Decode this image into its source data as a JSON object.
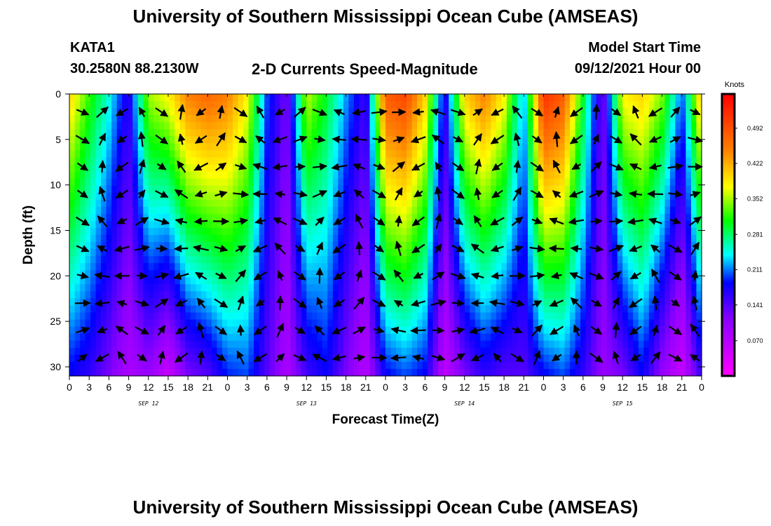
{
  "title_top": "University of Southern Mississippi Ocean Cube (AMSEAS)",
  "title_bottom": "University of Southern Mississippi Ocean Cube (AMSEAS)",
  "station": {
    "name": "KATA1",
    "coords": "30.2580N  88.2130W"
  },
  "model": {
    "label": "Model Start Time",
    "start": "09/12/2021 Hour 00"
  },
  "chart_data": {
    "type": "heatmap",
    "title": "2-D Currents Speed-Magnitude",
    "xlabel": "Forecast Time(Z)",
    "ylabel": "Depth (ft)",
    "xlim": [
      0,
      96
    ],
    "ylim": [
      0,
      31
    ],
    "x_tick_values": [
      0,
      3,
      6,
      9,
      12,
      15,
      18,
      21,
      24,
      27,
      30,
      33,
      36,
      39,
      42,
      45,
      48,
      51,
      54,
      57,
      60,
      63,
      66,
      69,
      72,
      75,
      78,
      81,
      84,
      87,
      90,
      93,
      96
    ],
    "x_tick_labels": [
      "0",
      "3",
      "6",
      "9",
      "12",
      "15",
      "18",
      "21",
      "0",
      "3",
      "6",
      "9",
      "12",
      "15",
      "18",
      "21",
      "0",
      "3",
      "6",
      "9",
      "12",
      "15",
      "18",
      "21",
      "0",
      "3",
      "6",
      "9",
      "12",
      "15",
      "18",
      "21",
      "0"
    ],
    "date_labels": [
      {
        "text": "SEP 12",
        "x": 12
      },
      {
        "text": "SEP 13",
        "x": 36
      },
      {
        "text": "SEP 14",
        "x": 60
      },
      {
        "text": "SEP 15",
        "x": 84
      }
    ],
    "y_ticks": [
      0,
      5,
      10,
      15,
      20,
      25,
      30
    ],
    "colorbar": {
      "units": "Knots",
      "min": 0.0,
      "max": 0.56,
      "ticks": [
        "0.492",
        "0.422",
        "0.352",
        "0.281",
        "0.211",
        "0.141",
        "0.070"
      ],
      "tick_values": [
        0.492,
        0.422,
        0.352,
        0.281,
        0.211,
        0.141,
        0.07
      ]
    },
    "speed_columns": [
      {
        "t": 0,
        "top": 0.4,
        "bottom": 0.18
      },
      {
        "t": 3,
        "top": 0.32,
        "bottom": 0.16
      },
      {
        "t": 6,
        "top": 0.25,
        "bottom": 0.12
      },
      {
        "t": 9,
        "top": 0.16,
        "bottom": 0.08
      },
      {
        "t": 12,
        "top": 0.35,
        "bottom": 0.1
      },
      {
        "t": 15,
        "top": 0.38,
        "bottom": 0.05
      },
      {
        "t": 18,
        "top": 0.45,
        "bottom": 0.12
      },
      {
        "t": 21,
        "top": 0.47,
        "bottom": 0.14
      },
      {
        "t": 24,
        "top": 0.45,
        "bottom": 0.19
      },
      {
        "t": 27,
        "top": 0.38,
        "bottom": 0.2
      },
      {
        "t": 30,
        "top": 0.2,
        "bottom": 0.14
      },
      {
        "t": 33,
        "top": 0.12,
        "bottom": 0.08
      },
      {
        "t": 36,
        "top": 0.36,
        "bottom": 0.15
      },
      {
        "t": 39,
        "top": 0.3,
        "bottom": 0.18
      },
      {
        "t": 42,
        "top": 0.22,
        "bottom": 0.12
      },
      {
        "t": 45,
        "top": 0.15,
        "bottom": 0.07
      },
      {
        "t": 48,
        "top": 0.48,
        "bottom": 0.18
      },
      {
        "t": 51,
        "top": 0.5,
        "bottom": 0.2
      },
      {
        "t": 54,
        "top": 0.4,
        "bottom": 0.18
      },
      {
        "t": 57,
        "top": 0.16,
        "bottom": 0.06
      },
      {
        "t": 60,
        "top": 0.4,
        "bottom": 0.12
      },
      {
        "t": 63,
        "top": 0.45,
        "bottom": 0.16
      },
      {
        "t": 66,
        "top": 0.38,
        "bottom": 0.14
      },
      {
        "t": 69,
        "top": 0.22,
        "bottom": 0.14
      },
      {
        "t": 72,
        "top": 0.52,
        "bottom": 0.18
      },
      {
        "t": 75,
        "top": 0.48,
        "bottom": 0.2
      },
      {
        "t": 78,
        "top": 0.3,
        "bottom": 0.16
      },
      {
        "t": 81,
        "top": 0.12,
        "bottom": 0.1
      },
      {
        "t": 84,
        "top": 0.38,
        "bottom": 0.12
      },
      {
        "t": 87,
        "top": 0.4,
        "bottom": 0.18
      },
      {
        "t": 90,
        "top": 0.34,
        "bottom": 0.1
      },
      {
        "t": 93,
        "top": 0.2,
        "bottom": 0.05
      },
      {
        "t": 96,
        "top": 0.42,
        "bottom": 0.16
      }
    ],
    "arrow_depths": [
      2,
      5,
      8,
      11,
      14,
      17,
      20,
      23,
      26,
      29
    ],
    "arrow_times": [
      2,
      5,
      8,
      11,
      14,
      17,
      20,
      23,
      26,
      29,
      32,
      35,
      38,
      41,
      44,
      47,
      50,
      53,
      56,
      59,
      62,
      65,
      68,
      71,
      74,
      77,
      80,
      83,
      86,
      89,
      92,
      95
    ]
  }
}
